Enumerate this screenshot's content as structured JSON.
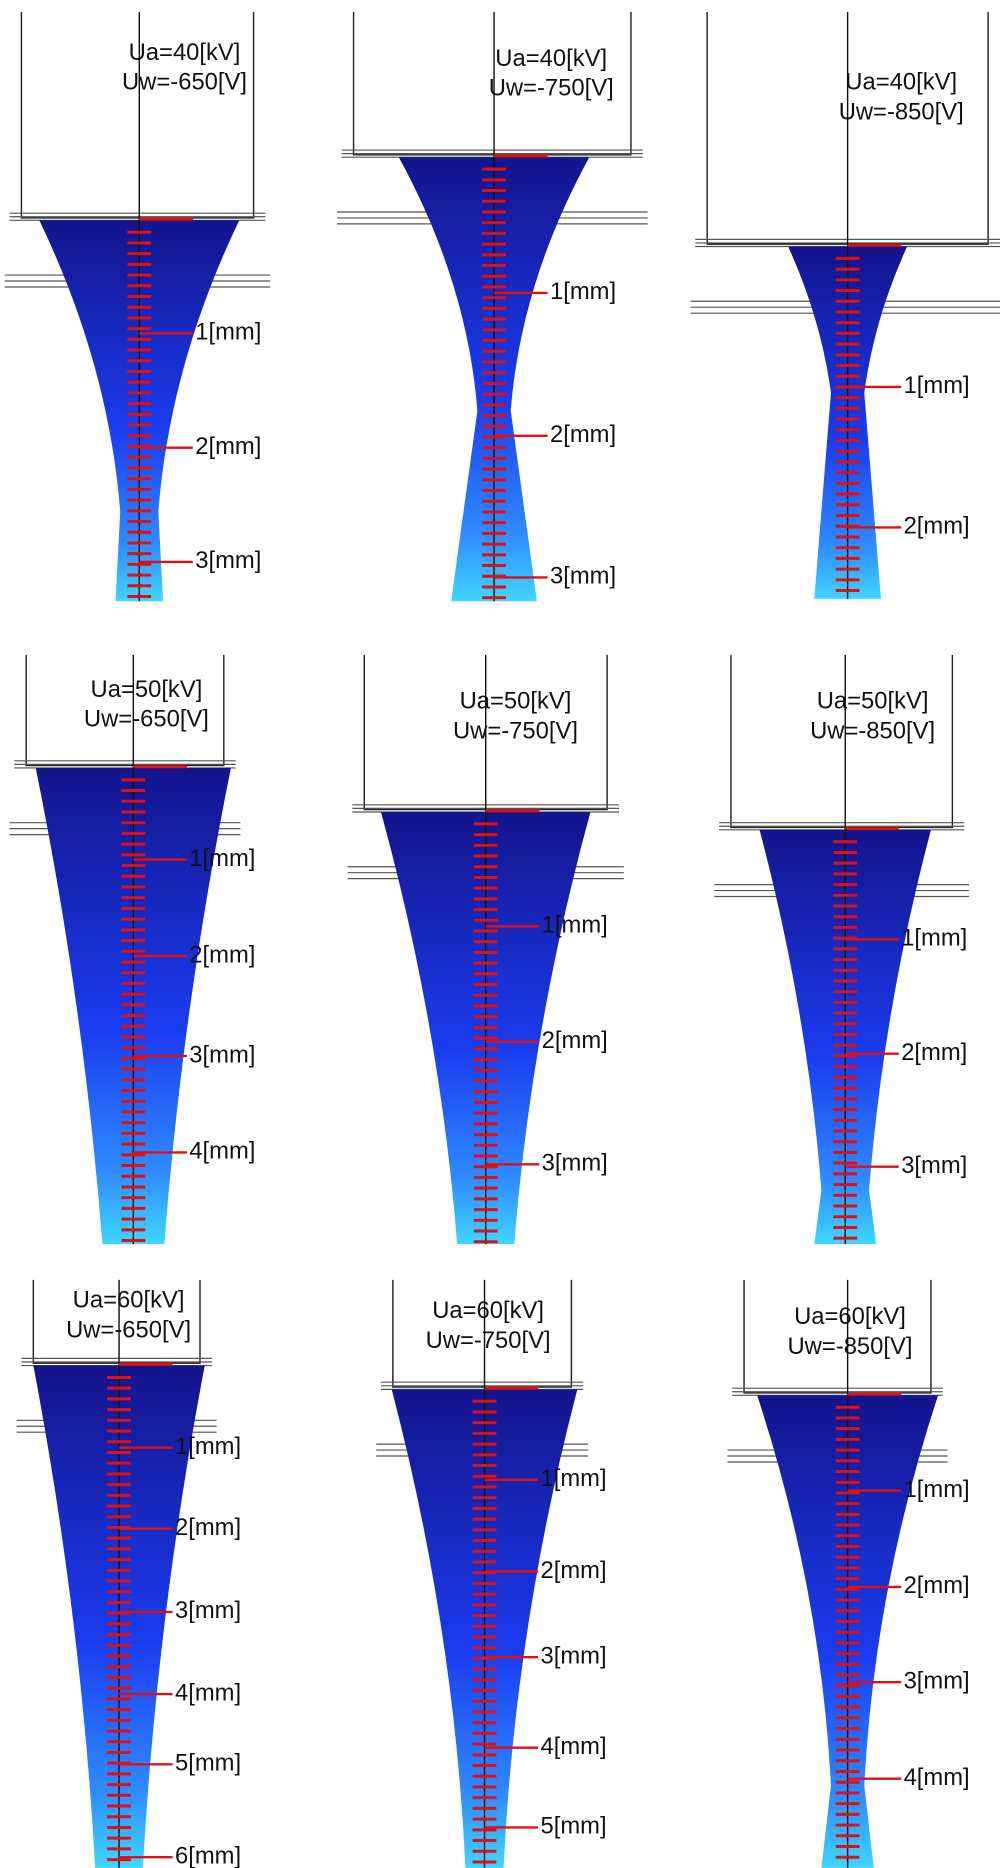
{
  "panels": [
    {
      "ua": "Ua=40[kV]",
      "uw": "Uw=-650[V]",
      "marks": [
        "1[mm]",
        "2[mm]",
        "3[mm]"
      ]
    },
    {
      "ua": "Ua=40[kV]",
      "uw": "Uw=-750[V]",
      "marks": [
        "1[mm]",
        "2[mm]",
        "3[mm]"
      ]
    },
    {
      "ua": "Ua=40[kV]",
      "uw": "Uw=-850[V]",
      "marks": [
        "1[mm]",
        "2[mm]"
      ]
    },
    {
      "ua": "Ua=50[kV]",
      "uw": "Uw=-650[V]",
      "marks": [
        "1[mm]",
        "2[mm]",
        "3[mm]",
        "4[mm]"
      ]
    },
    {
      "ua": "Ua=50[kV]",
      "uw": "Uw=-750[V]",
      "marks": [
        "1[mm]",
        "2[mm]",
        "3[mm]"
      ]
    },
    {
      "ua": "Ua=50[kV]",
      "uw": "Uw=-850[V]",
      "marks": [
        "1[mm]",
        "2[mm]",
        "3[mm]"
      ]
    },
    {
      "ua": "Ua=60[kV]",
      "uw": "Uw=-650[V]",
      "marks": [
        "1[mm]",
        "2[mm]",
        "3[mm]",
        "4[mm]",
        "5[mm]",
        "6[mm]"
      ]
    },
    {
      "ua": "Ua=60[kV]",
      "uw": "Uw=-750[V]",
      "marks": [
        "1[mm]",
        "2[mm]",
        "3[mm]",
        "4[mm]",
        "5[mm]"
      ]
    },
    {
      "ua": "Ua=60[kV]",
      "uw": "Uw=-850[V]",
      "marks": [
        "1[mm]",
        "2[mm]",
        "3[mm]",
        "4[mm]"
      ]
    }
  ]
}
